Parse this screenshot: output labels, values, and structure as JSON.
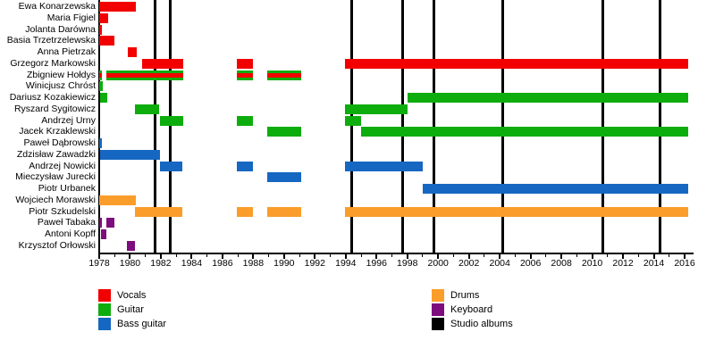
{
  "chart_data": {
    "type": "timeline",
    "title": "",
    "x_axis": {
      "start": 1978,
      "end": 2016,
      "major_tick_step": 2,
      "minor_tick_step": 1
    },
    "grid": false,
    "legend_position": "bottom-two-columns",
    "legend": [
      {
        "label": "Vocals",
        "color": "#f20000"
      },
      {
        "label": "Guitar",
        "color": "#0ead0e"
      },
      {
        "label": "Bass guitar",
        "color": "#1667c2"
      },
      {
        "label": "Drums",
        "color": "#fb9d2b"
      },
      {
        "label": "Keyboard",
        "color": "#7d0c7d"
      },
      {
        "label": "Studio albums",
        "color": "#000000"
      }
    ],
    "studio_album_years": [
      1981.6,
      1982.6,
      1994.4,
      1997.7,
      1999.7,
      2004.2,
      2010.7,
      2014.4
    ],
    "members": [
      {
        "name": "Ewa Konarzewska",
        "role": "Vocals",
        "periods": [
          [
            1978.0,
            1980.4
          ]
        ]
      },
      {
        "name": "Maria Figiel",
        "role": "Vocals",
        "periods": [
          [
            1978.0,
            1978.6
          ]
        ]
      },
      {
        "name": "Jolanta Darówna",
        "role": "Vocals",
        "periods": [
          [
            1978.0,
            1978.15
          ]
        ]
      },
      {
        "name": "Basia Trzetrzelewska",
        "role": "Vocals",
        "periods": [
          [
            1978.0,
            1979.0
          ]
        ]
      },
      {
        "name": "Anna Pietrzak",
        "role": "Vocals",
        "periods": [
          [
            1979.85,
            1980.45
          ]
        ]
      },
      {
        "name": "Grzegorz Markowski",
        "role": "Vocals",
        "periods": [
          [
            1980.8,
            1983.45
          ],
          [
            1986.95,
            1988.0
          ],
          [
            1993.95,
            2016.25
          ]
        ]
      },
      {
        "name": "Zbigniew Hołdys",
        "role": "Vocals + Guitar",
        "periods": [
          [
            1978.0,
            1978.2
          ],
          [
            1978.45,
            1983.45
          ],
          [
            1986.95,
            1988.0
          ],
          [
            1988.9,
            1991.1
          ]
        ]
      },
      {
        "name": "Winicjusz Chróst",
        "role": "Guitar",
        "periods": [
          [
            1978.0,
            1978.25
          ]
        ]
      },
      {
        "name": "Dariusz Kozakiewicz",
        "role": "Guitar",
        "periods": [
          [
            1978.05,
            1978.5
          ],
          [
            1998.0,
            2016.25
          ]
        ]
      },
      {
        "name": "Ryszard Sygitowicz",
        "role": "Guitar",
        "periods": [
          [
            1980.3,
            1981.9
          ],
          [
            1993.95,
            1998.0
          ]
        ]
      },
      {
        "name": "Andrzej Urny",
        "role": "Guitar",
        "periods": [
          [
            1981.95,
            1983.45
          ],
          [
            1986.95,
            1988.0
          ],
          [
            1993.95,
            1995.0
          ]
        ]
      },
      {
        "name": "Jacek Krzaklewski",
        "role": "Guitar",
        "periods": [
          [
            1988.9,
            1991.1
          ],
          [
            1995.0,
            2016.25
          ]
        ]
      },
      {
        "name": "Paweł Dąbrowski",
        "role": "Bass guitar",
        "periods": [
          [
            1978.0,
            1978.2
          ]
        ]
      },
      {
        "name": "Zdzisław Zawadzki",
        "role": "Bass guitar",
        "periods": [
          [
            1978.05,
            1981.95
          ]
        ]
      },
      {
        "name": "Andrzej Nowicki",
        "role": "Bass guitar",
        "periods": [
          [
            1981.95,
            1983.4
          ],
          [
            1986.95,
            1988.0
          ],
          [
            1993.95,
            1999.0
          ]
        ]
      },
      {
        "name": "Mieczysław Jurecki",
        "role": "Bass guitar",
        "periods": [
          [
            1988.9,
            1991.1
          ]
        ]
      },
      {
        "name": "Piotr Urbanek",
        "role": "Bass guitar",
        "periods": [
          [
            1999.0,
            2016.25
          ]
        ]
      },
      {
        "name": "Wojciech Morawski",
        "role": "Drums",
        "periods": [
          [
            1978.0,
            1980.4
          ]
        ]
      },
      {
        "name": "Piotr Szkudelski",
        "role": "Drums",
        "periods": [
          [
            1980.3,
            1983.4
          ],
          [
            1986.95,
            1988.0
          ],
          [
            1988.9,
            1991.1
          ],
          [
            1993.95,
            2016.25
          ]
        ]
      },
      {
        "name": "Paweł Tabaka",
        "role": "Keyboard",
        "periods": [
          [
            1978.0,
            1978.15
          ],
          [
            1978.45,
            1979.0
          ]
        ]
      },
      {
        "name": "Antoni Kopff",
        "role": "Keyboard",
        "periods": [
          [
            1978.1,
            1978.45
          ]
        ]
      },
      {
        "name": "Krzysztof Orłowski",
        "role": "Keyboard",
        "periods": [
          [
            1979.8,
            1980.35
          ]
        ]
      }
    ]
  }
}
